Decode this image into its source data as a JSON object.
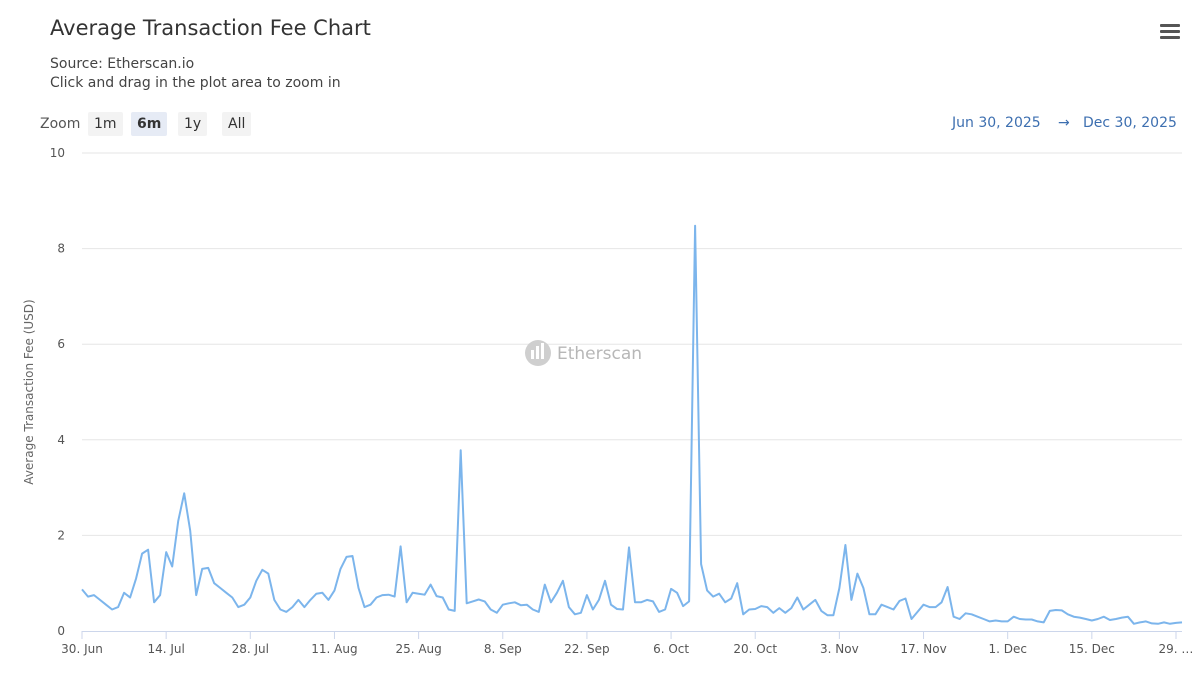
{
  "header": {
    "title": "Average Transaction Fee Chart",
    "source": "Source: Etherscan.io",
    "hint": "Click and drag in the plot area to zoom in"
  },
  "toolbar": {
    "menu_icon": "hamburger-menu-icon",
    "zoom_label": "Zoom",
    "zoom_buttons": [
      "1m",
      "6m",
      "1y",
      "All"
    ],
    "selected_zoom": "6m"
  },
  "range": {
    "from": "Jun 30, 2025",
    "arrow": "→",
    "to": "Dec 30, 2025"
  },
  "watermark": {
    "text": "Etherscan",
    "icon": "etherscan-logo-icon"
  },
  "colors": {
    "line": "#7cb5ec",
    "range_text": "#3d6fb0",
    "grid": "#e6e6e6"
  },
  "chart_data": {
    "type": "line",
    "title": "Average Transaction Fee Chart",
    "xlabel": "",
    "ylabel": "Average Transaction Fee (USD)",
    "ylim": [
      0,
      10
    ],
    "yticks": [
      0,
      2,
      4,
      6,
      8,
      10
    ],
    "xlim": [
      "2025-06-30",
      "2025-12-30"
    ],
    "grid": true,
    "legend": "none",
    "xtick_labels": [
      {
        "date": "2025-06-30",
        "label": "30. Jun"
      },
      {
        "date": "2025-07-14",
        "label": "14. Jul"
      },
      {
        "date": "2025-07-28",
        "label": "28. Jul"
      },
      {
        "date": "2025-08-11",
        "label": "11. Aug"
      },
      {
        "date": "2025-08-25",
        "label": "25. Aug"
      },
      {
        "date": "2025-09-08",
        "label": "8. Sep"
      },
      {
        "date": "2025-09-22",
        "label": "22. Sep"
      },
      {
        "date": "2025-10-06",
        "label": "6. Oct"
      },
      {
        "date": "2025-10-20",
        "label": "20. Oct"
      },
      {
        "date": "2025-11-03",
        "label": "3. Nov"
      },
      {
        "date": "2025-11-17",
        "label": "17. Nov"
      },
      {
        "date": "2025-12-01",
        "label": "1. Dec"
      },
      {
        "date": "2025-12-15",
        "label": "15. Dec"
      },
      {
        "date": "2025-12-29",
        "label": "29. …"
      }
    ],
    "series": [
      {
        "x": [
          "2025-06-30",
          "2025-07-01",
          "2025-07-02",
          "2025-07-03",
          "2025-07-04",
          "2025-07-05",
          "2025-07-06",
          "2025-07-07",
          "2025-07-08",
          "2025-07-09",
          "2025-07-10",
          "2025-07-11",
          "2025-07-12",
          "2025-07-13",
          "2025-07-14",
          "2025-07-15",
          "2025-07-16",
          "2025-07-17",
          "2025-07-18",
          "2025-07-19",
          "2025-07-20",
          "2025-07-21",
          "2025-07-22",
          "2025-07-23",
          "2025-07-24",
          "2025-07-25",
          "2025-07-26",
          "2025-07-27",
          "2025-07-28",
          "2025-07-29",
          "2025-07-30",
          "2025-07-31",
          "2025-08-01",
          "2025-08-02",
          "2025-08-03",
          "2025-08-04",
          "2025-08-05",
          "2025-08-06",
          "2025-08-07",
          "2025-08-08",
          "2025-08-09",
          "2025-08-10",
          "2025-08-11",
          "2025-08-12",
          "2025-08-13",
          "2025-08-14",
          "2025-08-15",
          "2025-08-16",
          "2025-08-17",
          "2025-08-18",
          "2025-08-19",
          "2025-08-20",
          "2025-08-21",
          "2025-08-22",
          "2025-08-23",
          "2025-08-24",
          "2025-08-25",
          "2025-08-26",
          "2025-08-27",
          "2025-08-28",
          "2025-08-29",
          "2025-08-30",
          "2025-08-31",
          "2025-09-01",
          "2025-09-02",
          "2025-09-03",
          "2025-09-04",
          "2025-09-05",
          "2025-09-06",
          "2025-09-07",
          "2025-09-08",
          "2025-09-09",
          "2025-09-10",
          "2025-09-11",
          "2025-09-12",
          "2025-09-13",
          "2025-09-14",
          "2025-09-15",
          "2025-09-16",
          "2025-09-17",
          "2025-09-18",
          "2025-09-19",
          "2025-09-20",
          "2025-09-21",
          "2025-09-22",
          "2025-09-23",
          "2025-09-24",
          "2025-09-25",
          "2025-09-26",
          "2025-09-27",
          "2025-09-28",
          "2025-09-29",
          "2025-09-30",
          "2025-10-01",
          "2025-10-02",
          "2025-10-03",
          "2025-10-04",
          "2025-10-05",
          "2025-10-06",
          "2025-10-07",
          "2025-10-08",
          "2025-10-09",
          "2025-10-10",
          "2025-10-11",
          "2025-10-12",
          "2025-10-13",
          "2025-10-14",
          "2025-10-15",
          "2025-10-16",
          "2025-10-17",
          "2025-10-18",
          "2025-10-19",
          "2025-10-20",
          "2025-10-21",
          "2025-10-22",
          "2025-10-23",
          "2025-10-24",
          "2025-10-25",
          "2025-10-26",
          "2025-10-27",
          "2025-10-28",
          "2025-10-29",
          "2025-10-30",
          "2025-10-31",
          "2025-11-01",
          "2025-11-02",
          "2025-11-03",
          "2025-11-04",
          "2025-11-05",
          "2025-11-06",
          "2025-11-07",
          "2025-11-08",
          "2025-11-09",
          "2025-11-10",
          "2025-11-11",
          "2025-11-12",
          "2025-11-13",
          "2025-11-14",
          "2025-11-15",
          "2025-11-16",
          "2025-11-17",
          "2025-11-18",
          "2025-11-19",
          "2025-11-20",
          "2025-11-21",
          "2025-11-22",
          "2025-11-23",
          "2025-11-24",
          "2025-11-25",
          "2025-11-26",
          "2025-11-27",
          "2025-11-28",
          "2025-11-29",
          "2025-11-30",
          "2025-12-01",
          "2025-12-02",
          "2025-12-03",
          "2025-12-04",
          "2025-12-05",
          "2025-12-06",
          "2025-12-07",
          "2025-12-08",
          "2025-12-09",
          "2025-12-10",
          "2025-12-11",
          "2025-12-12",
          "2025-12-13",
          "2025-12-14",
          "2025-12-15",
          "2025-12-16",
          "2025-12-17",
          "2025-12-18",
          "2025-12-19",
          "2025-12-20",
          "2025-12-21",
          "2025-12-22",
          "2025-12-23",
          "2025-12-24",
          "2025-12-25",
          "2025-12-26",
          "2025-12-27",
          "2025-12-28",
          "2025-12-29",
          "2025-12-30"
        ],
        "values": [
          0.87,
          0.72,
          0.75,
          0.65,
          0.55,
          0.45,
          0.5,
          0.8,
          0.7,
          1.1,
          1.62,
          1.7,
          0.6,
          0.75,
          1.65,
          1.35,
          2.3,
          2.88,
          2.1,
          0.75,
          1.3,
          1.32,
          1.0,
          0.9,
          0.8,
          0.7,
          0.5,
          0.55,
          0.7,
          1.05,
          1.28,
          1.2,
          0.65,
          0.45,
          0.4,
          0.5,
          0.65,
          0.5,
          0.65,
          0.78,
          0.8,
          0.65,
          0.85,
          1.3,
          1.55,
          1.57,
          0.9,
          0.5,
          0.55,
          0.7,
          0.75,
          0.76,
          0.72,
          1.77,
          0.6,
          0.8,
          0.78,
          0.76,
          0.97,
          0.73,
          0.7,
          0.45,
          0.42,
          3.78,
          0.58,
          0.62,
          0.66,
          0.62,
          0.45,
          0.38,
          0.55,
          0.58,
          0.6,
          0.54,
          0.55,
          0.45,
          0.4,
          0.97,
          0.6,
          0.8,
          1.05,
          0.5,
          0.35,
          0.38,
          0.75,
          0.45,
          0.65,
          1.05,
          0.55,
          0.46,
          0.45,
          1.75,
          0.6,
          0.6,
          0.65,
          0.62,
          0.4,
          0.45,
          0.88,
          0.8,
          0.52,
          0.62,
          8.48,
          1.4,
          0.85,
          0.72,
          0.78,
          0.6,
          0.68,
          1.0,
          0.35,
          0.45,
          0.46,
          0.52,
          0.5,
          0.38,
          0.48,
          0.38,
          0.48,
          0.7,
          0.45,
          0.55,
          0.65,
          0.42,
          0.33,
          0.33,
          0.9,
          1.8,
          0.65,
          1.2,
          0.9,
          0.35,
          0.35,
          0.55,
          0.5,
          0.45,
          0.63,
          0.68,
          0.25,
          0.4,
          0.55,
          0.5,
          0.5,
          0.6,
          0.92,
          0.3,
          0.25,
          0.37,
          0.35,
          0.3,
          0.25,
          0.2,
          0.22,
          0.2,
          0.2,
          0.3,
          0.25,
          0.24,
          0.24,
          0.2,
          0.18,
          0.42,
          0.44,
          0.43,
          0.35,
          0.3,
          0.28,
          0.25,
          0.22,
          0.25,
          0.3,
          0.23,
          0.25,
          0.28,
          0.3,
          0.15,
          0.18,
          0.2,
          0.16,
          0.15,
          0.18,
          0.15,
          0.17,
          0.18
        ]
      }
    ]
  }
}
